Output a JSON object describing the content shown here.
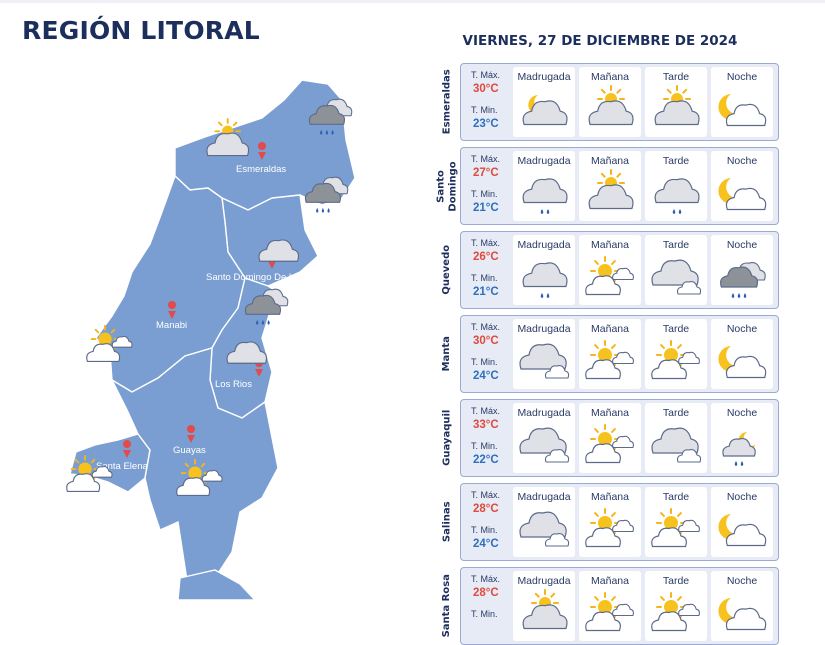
{
  "title": "REGIÓN LITORAL",
  "date": "VIERNES, 27 DE DICIEMBRE DE 2024",
  "temp_labels": {
    "max": "T. Máx.",
    "min": "T. Min."
  },
  "period_labels": [
    "Madrugada",
    "Mañana",
    "Tarde",
    "Noche"
  ],
  "map_cities": [
    "Esmeraldas",
    "Santo Domingo De Los",
    "Manabi",
    "Los Rios",
    "Santa Elena",
    "Guayas"
  ],
  "map_icons": [
    "partly-cloudy-icon",
    "cloudy-rain-icon",
    "cloudy-rain-icon",
    "cloud-icon",
    "cloudy-rain-icon",
    "sun-cloud-icon",
    "cloud-icon",
    "sun-cloud-icon",
    "sun-cloud-icon"
  ],
  "forecasts": [
    {
      "city": "Esmeraldas",
      "tmax": "30°C",
      "tmin": "23°C",
      "icons": [
        "night-cloudy-icon",
        "partly-cloudy-icon",
        "partly-cloudy-icon",
        "moon-cloud-icon"
      ]
    },
    {
      "city": "Santo\nDomingo",
      "tmax": "27°C",
      "tmin": "21°C",
      "icons": [
        "cloud-drizzle-icon",
        "partly-cloudy-icon",
        "cloud-drizzle-icon",
        "moon-cloud-icon"
      ]
    },
    {
      "city": "Quevedo",
      "tmax": "26°C",
      "tmin": "21°C",
      "icons": [
        "cloud-drizzle-icon",
        "sun-cloud-icon",
        "overcast-icon",
        "dark-cloud-rain-icon"
      ]
    },
    {
      "city": "Manta",
      "tmax": "30°C",
      "tmin": "24°C",
      "icons": [
        "overcast-icon",
        "sun-cloud-icon",
        "sun-cloud-icon",
        "moon-cloud-icon"
      ]
    },
    {
      "city": "Guayaquil",
      "tmax": "33°C",
      "tmin": "22°C",
      "icons": [
        "overcast-icon",
        "sun-cloud-icon",
        "overcast-icon",
        "moon-cloud-rain-icon"
      ]
    },
    {
      "city": "Salinas",
      "tmax": "28°C",
      "tmin": "24°C",
      "icons": [
        "overcast-icon",
        "sun-cloud-icon",
        "sun-cloud-icon",
        "moon-cloud-icon"
      ]
    },
    {
      "city": "Santa Rosa",
      "tmax": "28°C",
      "tmin": "",
      "icons": [
        "partly-cloudy-icon",
        "sun-cloud-icon",
        "sun-cloud-icon",
        "moon-cloud-icon"
      ]
    }
  ],
  "colors": {
    "map_fill": "#7a9ed1",
    "map_stroke": "#ffffff",
    "title": "#1c2f5c",
    "tmax": "#e04a3e",
    "tmin": "#2f6fbd",
    "card_bg": "#e6ebf5",
    "pin": "#e24b4b"
  }
}
